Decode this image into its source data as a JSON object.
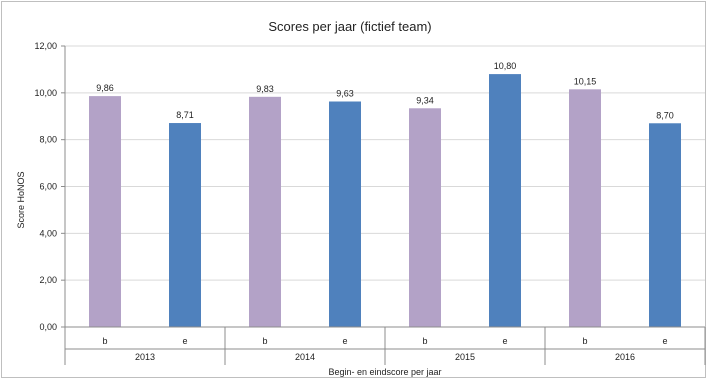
{
  "chart_data": {
    "type": "bar",
    "title": "Scores per jaar (fictief team)",
    "xlabel": "Begin- en eindscore per jaar",
    "ylabel": "Score HoNOS",
    "ylim": [
      0,
      12
    ],
    "yticks": [
      "0,00",
      "2,00",
      "4,00",
      "6,00",
      "8,00",
      "10,00",
      "12,00"
    ],
    "ytick_values": [
      0,
      2,
      4,
      6,
      8,
      10,
      12
    ],
    "grid": true,
    "legend": "none",
    "colors": {
      "b": "#b3a2c7",
      "e": "#4f81bd"
    },
    "groups": [
      {
        "label": "2013",
        "bars": [
          {
            "category": "b",
            "value": 9.86,
            "label": "9,86"
          },
          {
            "category": "e",
            "value": 8.71,
            "label": "8,71"
          }
        ]
      },
      {
        "label": "2014",
        "bars": [
          {
            "category": "b",
            "value": 9.83,
            "label": "9,83"
          },
          {
            "category": "e",
            "value": 9.63,
            "label": "9,63"
          }
        ]
      },
      {
        "label": "2015",
        "bars": [
          {
            "category": "b",
            "value": 9.34,
            "label": "9,34"
          },
          {
            "category": "e",
            "value": 10.8,
            "label": "10,80"
          }
        ]
      },
      {
        "label": "2016",
        "bars": [
          {
            "category": "b",
            "value": 10.15,
            "label": "10,15"
          },
          {
            "category": "e",
            "value": 8.7,
            "label": "8,70"
          }
        ]
      }
    ]
  }
}
